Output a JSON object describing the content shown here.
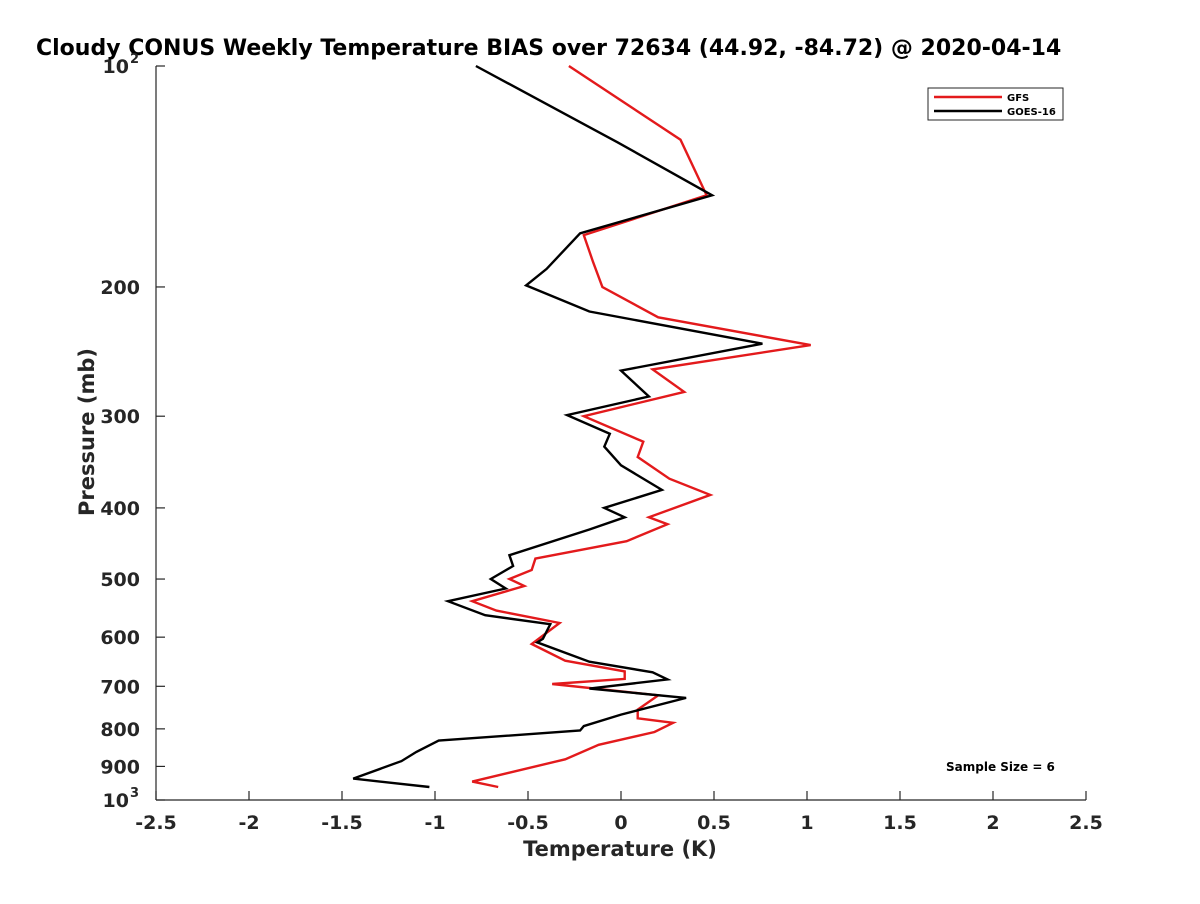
{
  "chart_data": {
    "type": "line",
    "title": "Cloudy CONUS Weekly Temperature BIAS over 72634 (44.92, -84.72) @ 2020-04-14",
    "xlabel": "Temperature (K)",
    "ylabel": "Pressure (mb)",
    "xlim": [
      -2.5,
      2.5
    ],
    "ylim": [
      1000,
      100
    ],
    "yscale": "log",
    "x_ticks": [
      "-2.5",
      "-2",
      "-1.5",
      "-1",
      "-0.5",
      "0",
      "0.5",
      "1",
      "1.5",
      "2",
      "2.5"
    ],
    "y_ticks": [
      {
        "value": 100,
        "base": "10",
        "exp": "2"
      },
      {
        "value": 200,
        "base": "200",
        "exp": ""
      },
      {
        "value": 300,
        "base": "300",
        "exp": ""
      },
      {
        "value": 400,
        "base": "400",
        "exp": ""
      },
      {
        "value": 500,
        "base": "500",
        "exp": ""
      },
      {
        "value": 600,
        "base": "600",
        "exp": ""
      },
      {
        "value": 700,
        "base": "700",
        "exp": ""
      },
      {
        "value": 800,
        "base": "800",
        "exp": ""
      },
      {
        "value": 900,
        "base": "900",
        "exp": ""
      },
      {
        "value": 1000,
        "base": "10",
        "exp": "3"
      }
    ],
    "legend_position": "top-right",
    "annotation": "Sample Size = 6",
    "series": [
      {
        "name": "GFS",
        "color": "#e31a1c",
        "points": [
          [
            -0.28,
            100
          ],
          [
            0.32,
            126
          ],
          [
            0.46,
            150
          ],
          [
            -0.2,
            170
          ],
          [
            -0.15,
            185
          ],
          [
            -0.1,
            200
          ],
          [
            0.2,
            220
          ],
          [
            1.02,
            240
          ],
          [
            0.17,
            259
          ],
          [
            0.34,
            278
          ],
          [
            -0.2,
            300
          ],
          [
            0.12,
            325
          ],
          [
            0.09,
            341
          ],
          [
            0.26,
            365
          ],
          [
            0.48,
            384
          ],
          [
            0.15,
            412
          ],
          [
            0.25,
            421
          ],
          [
            0.03,
            444
          ],
          [
            -0.46,
            469
          ],
          [
            -0.48,
            486
          ],
          [
            -0.6,
            500
          ],
          [
            -0.52,
            511
          ],
          [
            -0.8,
            536
          ],
          [
            -0.67,
            552
          ],
          [
            -0.33,
            574
          ],
          [
            -0.48,
            613
          ],
          [
            -0.3,
            646
          ],
          [
            0.02,
            668
          ],
          [
            0.02,
            684
          ],
          [
            -0.37,
            695
          ],
          [
            0.2,
            720
          ],
          [
            0.09,
            753
          ],
          [
            0.09,
            774
          ],
          [
            0.28,
            785
          ],
          [
            0.18,
            808
          ],
          [
            -0.12,
            841
          ],
          [
            -0.3,
            880
          ],
          [
            -0.8,
            944
          ],
          [
            -0.66,
            960
          ]
        ]
      },
      {
        "name": "GOES-16",
        "color": "#000000",
        "points": [
          [
            -0.78,
            100
          ],
          [
            -0.02,
            127
          ],
          [
            0.49,
            150
          ],
          [
            -0.22,
            169
          ],
          [
            -0.4,
            189
          ],
          [
            -0.51,
            199
          ],
          [
            -0.17,
            216
          ],
          [
            0.76,
            239
          ],
          [
            0.0,
            260
          ],
          [
            0.15,
            282
          ],
          [
            -0.29,
            299
          ],
          [
            -0.06,
            317
          ],
          [
            -0.09,
            330
          ],
          [
            0.0,
            350
          ],
          [
            0.22,
            378
          ],
          [
            -0.09,
            400
          ],
          [
            0.02,
            412
          ],
          [
            -0.17,
            428
          ],
          [
            -0.6,
            464
          ],
          [
            -0.58,
            480
          ],
          [
            -0.7,
            500
          ],
          [
            -0.62,
            515
          ],
          [
            -0.93,
            536
          ],
          [
            -0.73,
            560
          ],
          [
            -0.38,
            576
          ],
          [
            -0.42,
            603
          ],
          [
            -0.45,
            610
          ],
          [
            -0.17,
            648
          ],
          [
            0.17,
            670
          ],
          [
            0.25,
            685
          ],
          [
            -0.17,
            705
          ],
          [
            0.35,
            726
          ],
          [
            0.0,
            765
          ],
          [
            -0.2,
            793
          ],
          [
            -0.22,
            804
          ],
          [
            -0.98,
            830
          ],
          [
            -1.1,
            860
          ],
          [
            -1.18,
            885
          ],
          [
            -1.44,
            935
          ],
          [
            -1.03,
            960
          ]
        ]
      }
    ]
  }
}
